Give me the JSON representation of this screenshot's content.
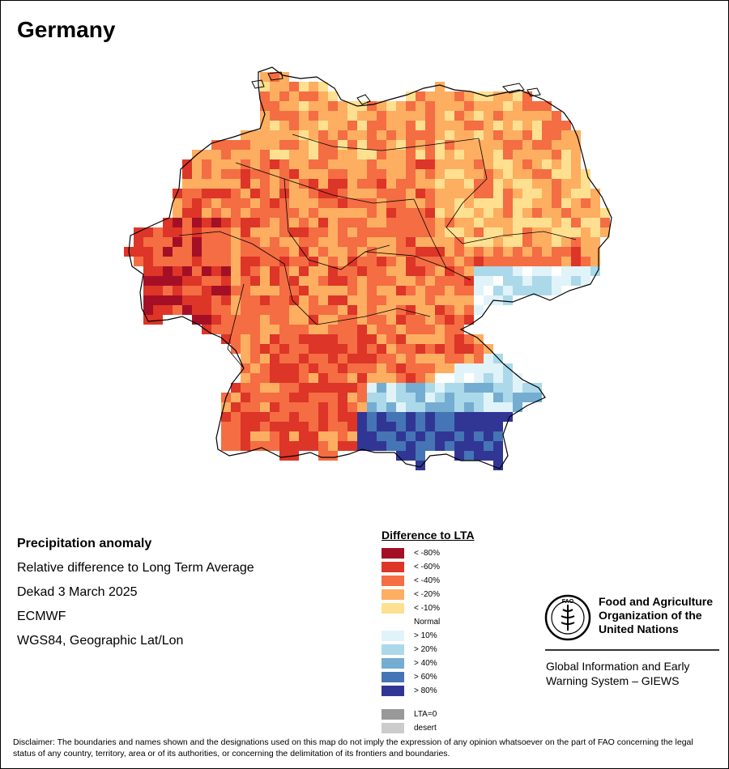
{
  "map": {
    "title": "Germany",
    "info": {
      "heading": "Precipitation anomaly",
      "line1": "Relative difference to Long Term Average",
      "line2": "Dekad 3 March 2025",
      "line3": "ECMWF",
      "line4": "WGS84, Geographic Lat/Lon"
    }
  },
  "legend": {
    "title": "Difference to LTA",
    "classes": [
      {
        "label": "< -80%",
        "color": "#a50f26"
      },
      {
        "label": "< -60%",
        "color": "#dd3527"
      },
      {
        "label": "< -40%",
        "color": "#f46d43"
      },
      {
        "label": "< -20%",
        "color": "#fdae61"
      },
      {
        "label": "< -10%",
        "color": "#fee090"
      },
      {
        "label": "Normal",
        "color": "#ffffff"
      },
      {
        "label": "> 10%",
        "color": "#e0f3f8"
      },
      {
        "label": "> 20%",
        "color": "#abd9e9"
      },
      {
        "label": "> 40%",
        "color": "#74add1"
      },
      {
        "label": "> 60%",
        "color": "#4575b4"
      },
      {
        "label": "> 80%",
        "color": "#313695"
      }
    ],
    "extra": [
      {
        "label": "LTA=0",
        "color": "#999999"
      },
      {
        "label": "desert",
        "color": "#cccccc"
      }
    ]
  },
  "branding": {
    "org_line1": "Food and Agriculture",
    "org_line2": "Organization of the",
    "org_line3": "United Nations",
    "system_line1": "Global Information and Early",
    "system_line2": "Warning System – GIEWS",
    "logo_text": "FAO"
  },
  "disclaimer": "Disclaimer: The boundaries and names shown and the designations used on this map do not imply the expression of any opinion whatsoever on the part of FAO concerning the legal status of any country, territory, area or of its authorities, or concerning the delimitation of its frontiers and boundaries."
}
